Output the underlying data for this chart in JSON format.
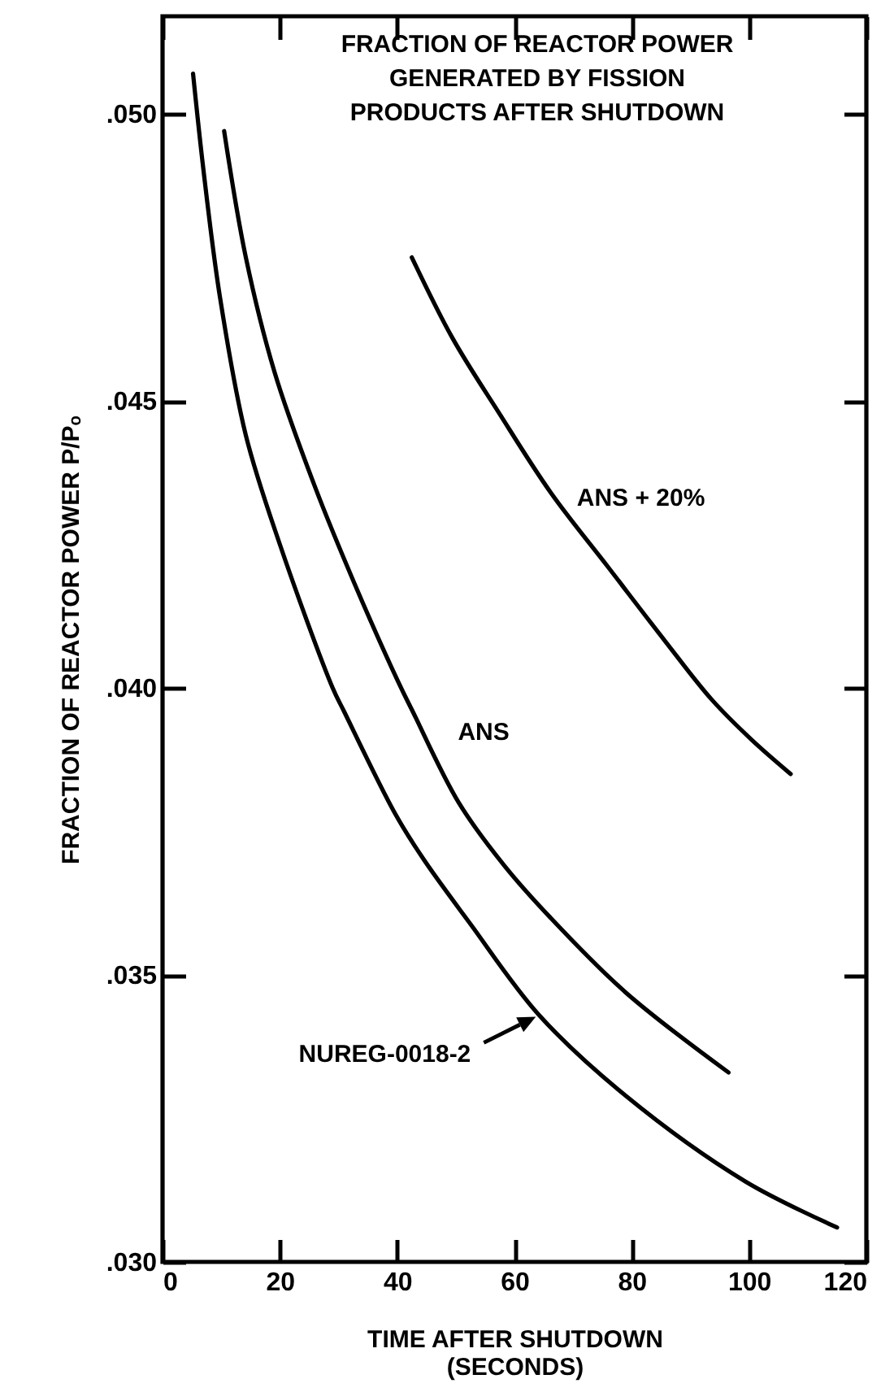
{
  "chart_data": {
    "type": "line",
    "title": "FRACTION OF REACTOR POWER GENERATED BY FISSION PRODUCTS AFTER SHUTDOWN",
    "xlabel": "TIME AFTER SHUTDOWN (SECONDS)",
    "ylabel": "FRACTION OF REACTOR POWER P/Pₒ",
    "xlim": [
      0,
      120
    ],
    "xticks": [
      0,
      20,
      40,
      60,
      80,
      100,
      120
    ],
    "ylim": [
      0.03,
      0.0517
    ],
    "yticks": [
      {
        "value": 0.03,
        "label": ".030"
      },
      {
        "value": 0.035,
        "label": ".035"
      },
      {
        "value": 0.04,
        "label": ".040"
      },
      {
        "value": 0.045,
        "label": ".045"
      },
      {
        "value": 0.05,
        "label": ".050"
      }
    ],
    "grid": false,
    "legend": false,
    "marker": "none",
    "line_style": "solid",
    "series": [
      {
        "name": "NUREG-0018-2",
        "color": "#000000",
        "x": [
          5.2,
          7,
          9.8,
          14.2,
          20,
          29,
          30.9,
          39.7,
          44.6,
          52.4,
          64.2,
          78.9,
          99.4,
          115
        ],
        "values": [
          0.0507,
          0.049,
          0.0468,
          0.0444,
          0.0425,
          0.04,
          0.0396,
          0.0378,
          0.037,
          0.0359,
          0.0343,
          0.0329,
          0.0314,
          0.0306
        ]
      },
      {
        "name": "ANS",
        "color": "#000000",
        "x": [
          10.5,
          14.2,
          19.1,
          26,
          32.8,
          40.2,
          42.6,
          50.5,
          58.3,
          66.1,
          78.9,
          96.5
        ],
        "values": [
          0.0497,
          0.0475,
          0.0455,
          0.0435,
          0.0418,
          0.0401,
          0.0396,
          0.038,
          0.0369,
          0.036,
          0.0347,
          0.0333
        ]
      },
      {
        "name": "ANS + 20%",
        "color": "#000000",
        "x": [
          42.5,
          49.4,
          57.3,
          66.2,
          76,
          85.8,
          93.6,
          100.4,
          107.1
        ],
        "values": [
          0.0475,
          0.0461,
          0.0448,
          0.0434,
          0.0421,
          0.0408,
          0.0398,
          0.0391,
          0.0385
        ]
      }
    ]
  }
}
